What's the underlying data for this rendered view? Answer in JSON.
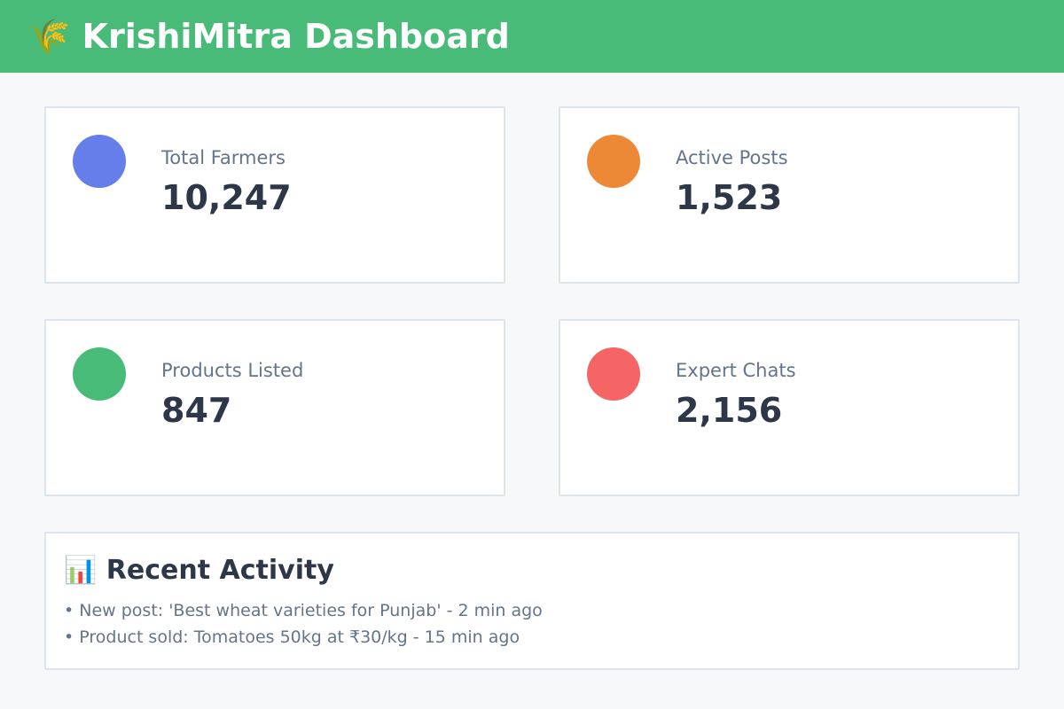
{
  "header": {
    "title": "🌾 KrishiMitra Dashboard",
    "background_color": "#48bb78",
    "text_color": "#ffffff"
  },
  "stats": [
    {
      "label": "Total Farmers",
      "value": "10,247",
      "icon": "farmers-dot-icon",
      "color": "#667eea"
    },
    {
      "label": "Active Posts",
      "value": "1,523",
      "icon": "posts-dot-icon",
      "color": "#ed8936"
    },
    {
      "label": "Products Listed",
      "value": "847",
      "icon": "products-dot-icon",
      "color": "#48bb78"
    },
    {
      "label": "Expert Chats",
      "value": "2,156",
      "icon": "chats-dot-icon",
      "color": "#f56565"
    }
  ],
  "activity": {
    "title": "📊 Recent Activity",
    "items": [
      "New post: 'Best wheat varieties for Punjab' - 2 min ago",
      "Product sold: Tomatoes 50kg at ₹30/kg - 15 min ago"
    ]
  },
  "palette": {
    "page_background": "#f7f8fa",
    "card_background": "#ffffff",
    "card_border": "#dde4ed",
    "label_text": "#64748b",
    "value_text": "#2d3748"
  }
}
